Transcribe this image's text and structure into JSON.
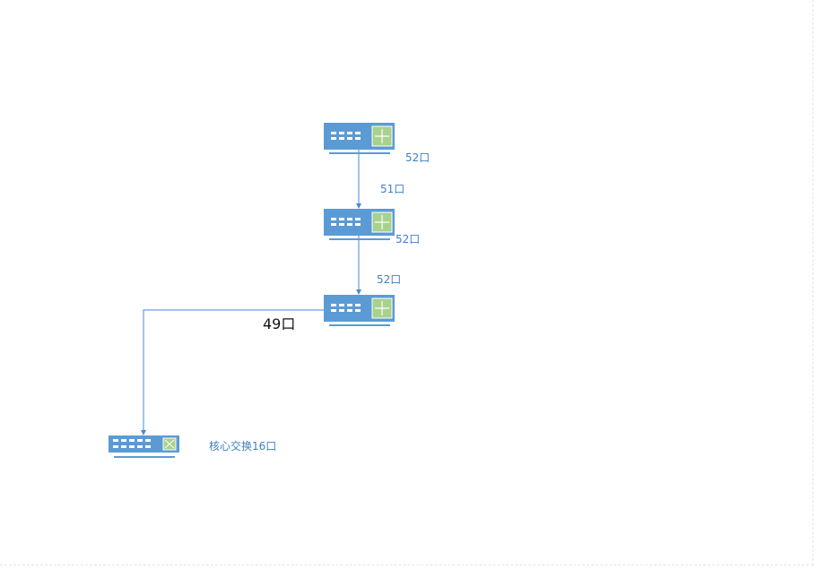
{
  "diagram": {
    "colors": {
      "switch_body": "#5b9bd5",
      "module": "#a9d18e",
      "link": "#4a8acb",
      "label": "#3f7fc7"
    },
    "nodes": [
      {
        "id": "switch-1",
        "icon": "layer3-switch-icon"
      },
      {
        "id": "switch-2",
        "icon": "layer3-switch-icon"
      },
      {
        "id": "switch-3",
        "icon": "layer3-switch-icon"
      },
      {
        "id": "core-switch",
        "icon": "core-switch-icon"
      }
    ],
    "labels": {
      "s1_port": "52口",
      "s2_in_port": "51口",
      "s2_out_port": "52口",
      "s3_in_port": "52口",
      "s3_out_port": "49口",
      "core": "核心交换16口"
    }
  }
}
